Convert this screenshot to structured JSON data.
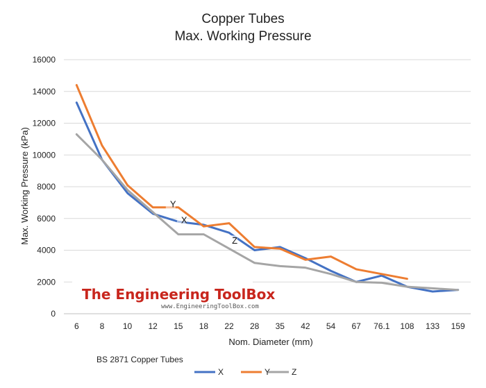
{
  "chart_data": {
    "type": "line",
    "title_lines": [
      "Copper Tubes",
      "Max. Working Pressure"
    ],
    "xlabel": "Nom. Diameter (mm)",
    "ylabel": "Max. Working Pressure (kPa)",
    "categories": [
      "6",
      "8",
      "10",
      "12",
      "15",
      "18",
      "22",
      "28",
      "35",
      "42",
      "54",
      "67",
      "76.1",
      "108",
      "133",
      "159"
    ],
    "ylim": [
      0,
      16000
    ],
    "yticks": [
      0,
      2000,
      4000,
      6000,
      8000,
      10000,
      12000,
      14000,
      16000
    ],
    "ytick_labels": [
      "0",
      "2000",
      "4000",
      "6000",
      "8000",
      "10000",
      "12000",
      "14000",
      "16000"
    ],
    "grid": "horizontal",
    "legend_position": "bottom",
    "series": [
      {
        "name": "X",
        "color": "#4472c4",
        "values": [
          13300,
          9700,
          7600,
          6300,
          5800,
          5600,
          5100,
          4000,
          4200,
          3500,
          2700,
          2000,
          2400,
          1700,
          1400,
          1500
        ]
      },
      {
        "name": "Y",
        "color": "#ed7d31",
        "values": [
          14400,
          10600,
          8100,
          6700,
          6700,
          5500,
          5700,
          4200,
          4100,
          3400,
          3600,
          2800,
          2500,
          2200,
          null,
          null
        ]
      },
      {
        "name": "Z",
        "color": "#a5a5a5",
        "values": [
          11300,
          9700,
          7800,
          6400,
          5000,
          5000,
          4100,
          3200,
          3000,
          2900,
          2500,
          2000,
          1950,
          1700,
          1600,
          1500
        ]
      }
    ],
    "annotations": [
      {
        "text": "Y",
        "category": "15",
        "value": 6800
      },
      {
        "text": "X",
        "category": "15",
        "value": 5800
      },
      {
        "text": "Z",
        "category": "22",
        "value": 4500
      }
    ],
    "note": "BS 2871 Copper Tubes"
  },
  "watermark": {
    "brand": "The Engineering ToolBox",
    "url": "www.EngineeringToolBox.com"
  }
}
